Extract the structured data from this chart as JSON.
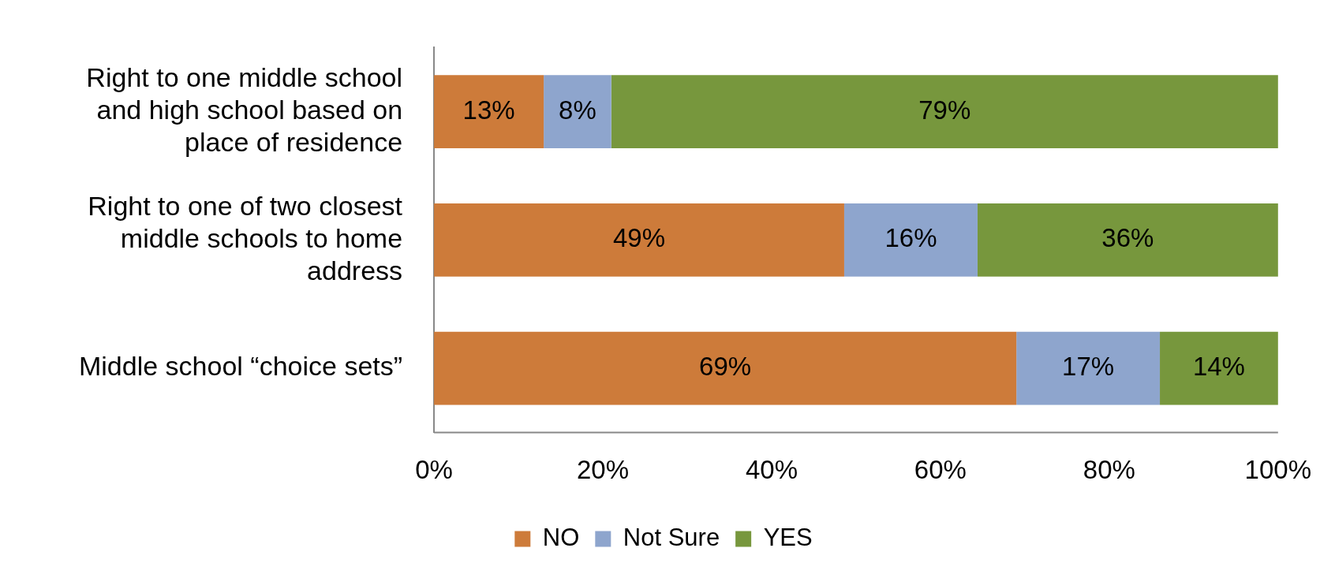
{
  "chart_data": {
    "type": "bar",
    "orientation": "horizontal",
    "stacked": true,
    "categories": [
      "Right to one middle school and high school based on place of residence",
      "Right to one of two closest middle schools to home address",
      "Middle school “choice sets”"
    ],
    "series": [
      {
        "name": "NO",
        "color": "#cd7b3a",
        "values": [
          13,
          48.6,
          69
        ],
        "value_labels": [
          "13%",
          "49%",
          "69%"
        ]
      },
      {
        "name": "Not Sure",
        "color": "#8ea5cd",
        "values": [
          8,
          15.8,
          17
        ],
        "value_labels": [
          "8%",
          "16%",
          "17%"
        ]
      },
      {
        "name": "YES",
        "color": "#77973d",
        "values": [
          79,
          35.6,
          14
        ],
        "value_labels": [
          "79%",
          "36%",
          "14%"
        ]
      }
    ],
    "xlim": [
      0,
      100
    ],
    "xticks": [
      {
        "value": 0,
        "label": "0%"
      },
      {
        "value": 20,
        "label": "20%"
      },
      {
        "value": 40,
        "label": "40%"
      },
      {
        "value": 60,
        "label": "60%"
      },
      {
        "value": 80,
        "label": "80%"
      },
      {
        "value": 100,
        "label": "100%"
      }
    ],
    "grid": false,
    "legend": "bottom"
  }
}
